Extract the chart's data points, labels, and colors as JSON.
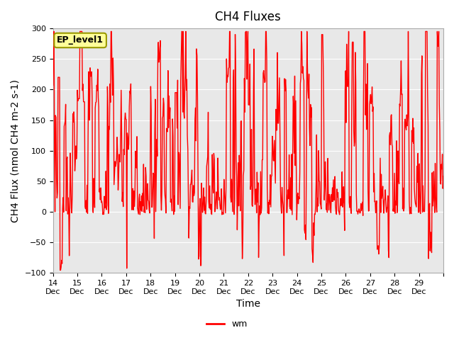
{
  "title": "CH4 Fluxes",
  "xlabel": "Time",
  "ylabel": "CH4 Flux (nmol CH4 m-2 s-1)",
  "ylim": [
    -100,
    300
  ],
  "yticks": [
    -100,
    -50,
    0,
    50,
    100,
    150,
    200,
    250,
    300
  ],
  "line_color": "#FF0000",
  "line_width": 1.0,
  "bg_color": "#E8E8E8",
  "fig_bg": "#FFFFFF",
  "legend_label": "wm",
  "annotation_text": "EP_level1",
  "annotation_bg": "#FFFF99",
  "annotation_border": "#999900",
  "title_fontsize": 12,
  "label_fontsize": 10,
  "tick_fontsize": 8,
  "seed": 42,
  "n_days": 16,
  "start_day": 14,
  "points_per_day": 48,
  "x_tick_labels": [
    "Dec 14",
    "Dec 15",
    "Dec 16",
    "Dec 17",
    "Dec 18",
    "Dec 19",
    "Dec 20",
    "Dec 21",
    "Dec 22",
    "Dec 23",
    "Dec 24",
    "Dec 25",
    "Dec 26",
    "Dec 27",
    "Dec 28",
    "Dec 29"
  ]
}
